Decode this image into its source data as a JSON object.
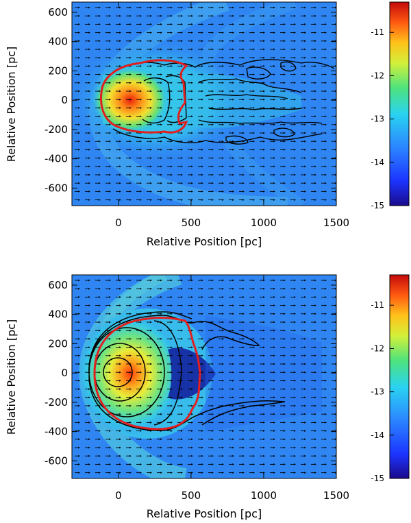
{
  "chart_data": [
    {
      "type": "heatmap",
      "panel": "top",
      "xlabel": "Relative Position [pc]",
      "ylabel": "Relative Position [pc]",
      "xlim": [
        -320,
        1500
      ],
      "ylim": [
        -720,
        670
      ],
      "xticks": [
        0,
        500,
        1000,
        1500
      ],
      "yticks": [
        -600,
        -400,
        -200,
        0,
        200,
        400,
        600
      ],
      "colorbar": {
        "range": [
          -15,
          -10.3
        ],
        "ticks": [
          -11,
          -12,
          -13,
          -14,
          -15
        ],
        "tick_labels": [
          "-11",
          "-12",
          "-13",
          "-14",
          "-15"
        ]
      },
      "peak": {
        "x": 40,
        "y": 0
      },
      "outer_contour_extent_x": [
        -100,
        1450
      ],
      "red_contour_extent_x": [
        -110,
        520
      ],
      "description_series": "density map of a cloud moving through a flow; velocity arrows point left-to-right"
    },
    {
      "type": "heatmap",
      "panel": "bottom",
      "xlabel": "Relative Position [pc]",
      "ylabel": "Relative Position [pc]",
      "xlim": [
        -320,
        1500
      ],
      "ylim": [
        -720,
        670
      ],
      "xticks": [
        0,
        500,
        1000,
        1500
      ],
      "yticks": [
        -600,
        -400,
        -200,
        0,
        200,
        400,
        600
      ],
      "colorbar": {
        "range": [
          -15,
          -10.3
        ],
        "ticks": [
          -11,
          -12,
          -13,
          -14,
          -15
        ],
        "tick_labels": [
          "-11",
          "-12",
          "-13",
          "-14",
          "-15"
        ]
      },
      "peak": {
        "x": 0,
        "y": 0
      },
      "outer_contour_extent_x": [
        -180,
        1150
      ],
      "red_contour_extent_x": [
        -160,
        550
      ]
    }
  ],
  "colors": {
    "background_field": "#2f86f2",
    "contour": "#000000",
    "boundary": "#e21f1f"
  }
}
